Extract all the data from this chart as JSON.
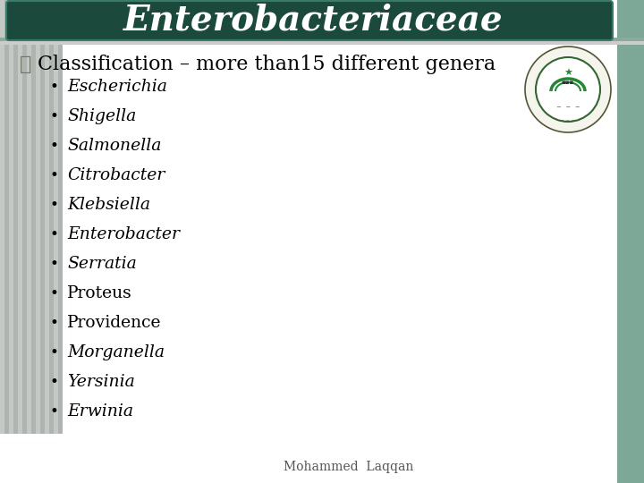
{
  "title": "Enterobacteriaceae",
  "title_bg_color": "#1b4a3c",
  "title_text_color": "#ffffff",
  "slide_bg_color": "#d8d8d8",
  "content_bg_color": "#ffffff",
  "stripe_colors": [
    "#c8ccc8",
    "#b8bcb8",
    "#a8aca8"
  ],
  "right_strip_color": "#7da898",
  "heading": "Classification – more than15 different genera",
  "heading_color": "#000000",
  "heading_bullet_color": "#6b7c4a",
  "bullet_color": "#000000",
  "bullet_items": [
    {
      "text": "Escherichia",
      "italic": true
    },
    {
      "text": "Shigella",
      "italic": true
    },
    {
      "text": "Salmonella",
      "italic": true
    },
    {
      "text": "Citrobacter",
      "italic": true
    },
    {
      "text": "Klebsiella",
      "italic": true
    },
    {
      "text": "Enterobacter",
      "italic": true
    },
    {
      "text": "Serratia",
      "italic": true
    },
    {
      "text": "Proteus",
      "italic": false
    },
    {
      "text": "Providence",
      "italic": false
    },
    {
      "text": "Morganella",
      "italic": true
    },
    {
      "text": "Yersinia",
      "italic": true
    },
    {
      "text": "Erwinia",
      "italic": true
    }
  ],
  "footer": "Mohammed  Laqqan",
  "footer_color": "#555555",
  "title_font_size": 28,
  "heading_font_size": 16,
  "bullet_font_size": 13.5,
  "footer_font_size": 10
}
